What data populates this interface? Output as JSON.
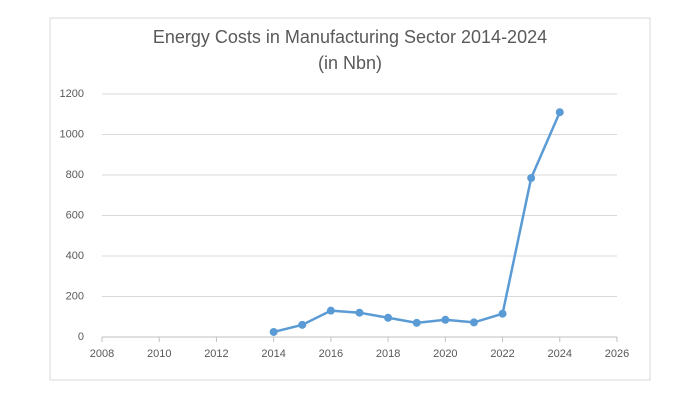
{
  "chart_data": {
    "type": "line",
    "title": "Energy Costs in Manufacturing Sector 2014-2024",
    "subtitle": "(in Nbn)",
    "x": [
      2014,
      2015,
      2016,
      2017,
      2018,
      2019,
      2020,
      2021,
      2022,
      2023,
      2024
    ],
    "series": [
      {
        "name": "Energy Costs",
        "color": "#5b9bd5",
        "values": [
          25,
          60,
          130,
          120,
          95,
          70,
          85,
          72,
          115,
          785,
          1110
        ]
      }
    ],
    "xlim": [
      2008,
      2026
    ],
    "xticks": [
      2008,
      2010,
      2012,
      2014,
      2016,
      2018,
      2020,
      2022,
      2024,
      2026
    ],
    "ylim": [
      0,
      1200
    ],
    "yticks": [
      0,
      200,
      400,
      600,
      800,
      1000,
      1200
    ],
    "grid": true
  }
}
